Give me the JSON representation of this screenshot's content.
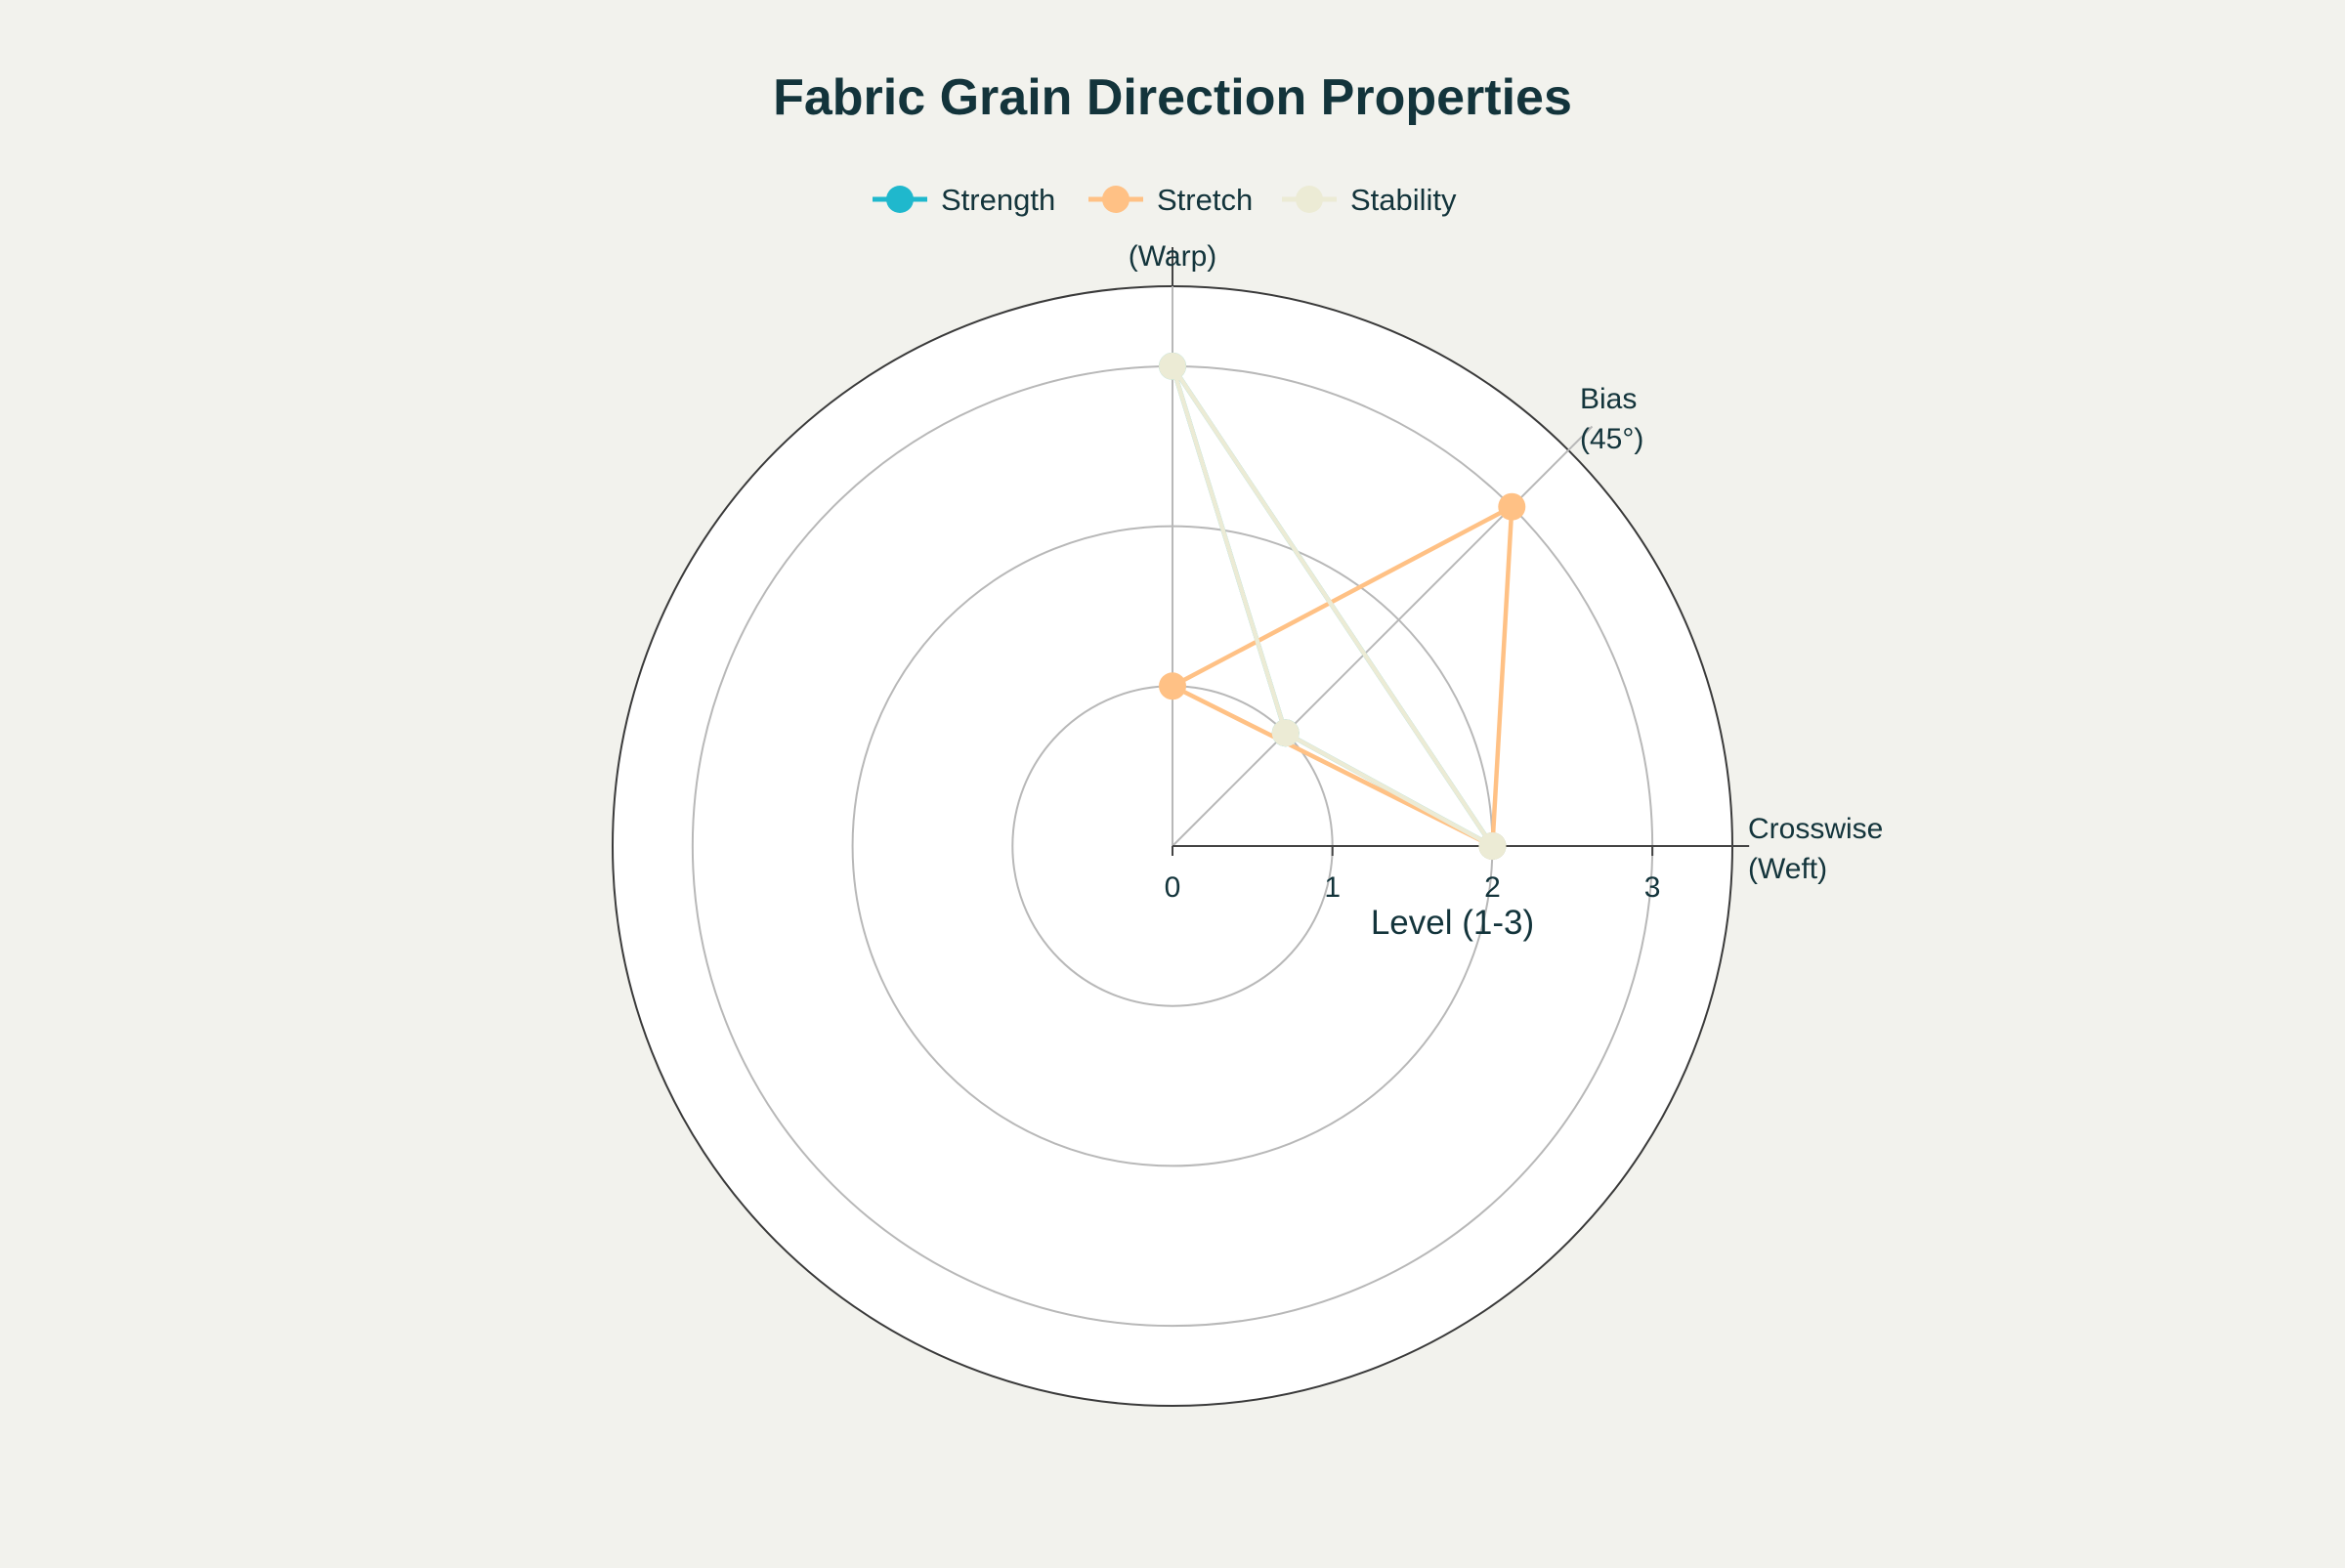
{
  "chart_data": {
    "type": "radar",
    "title": "Fabric Grain Direction Properties",
    "axes": [
      {
        "name": "(Warp)",
        "angle_deg": 90
      },
      {
        "name": "Bias\n(45°)",
        "angle_deg": 45
      },
      {
        "name": "Crosswise\n(Weft)",
        "angle_deg": 0
      }
    ],
    "radial_axis": {
      "title": "Level (1-3)",
      "range": [
        0,
        3.5
      ],
      "ticks": [
        0,
        1,
        2,
        3
      ]
    },
    "legend_position": "top-center",
    "grid": true,
    "series": [
      {
        "name": "Strength",
        "color": "#1fb8cd",
        "values": [
          3,
          1,
          2
        ]
      },
      {
        "name": "Stretch",
        "color": "#ffc185",
        "values": [
          1,
          3,
          2
        ]
      },
      {
        "name": "Stability",
        "color": "#ecebd5",
        "values": [
          3,
          1,
          2
        ]
      }
    ]
  }
}
